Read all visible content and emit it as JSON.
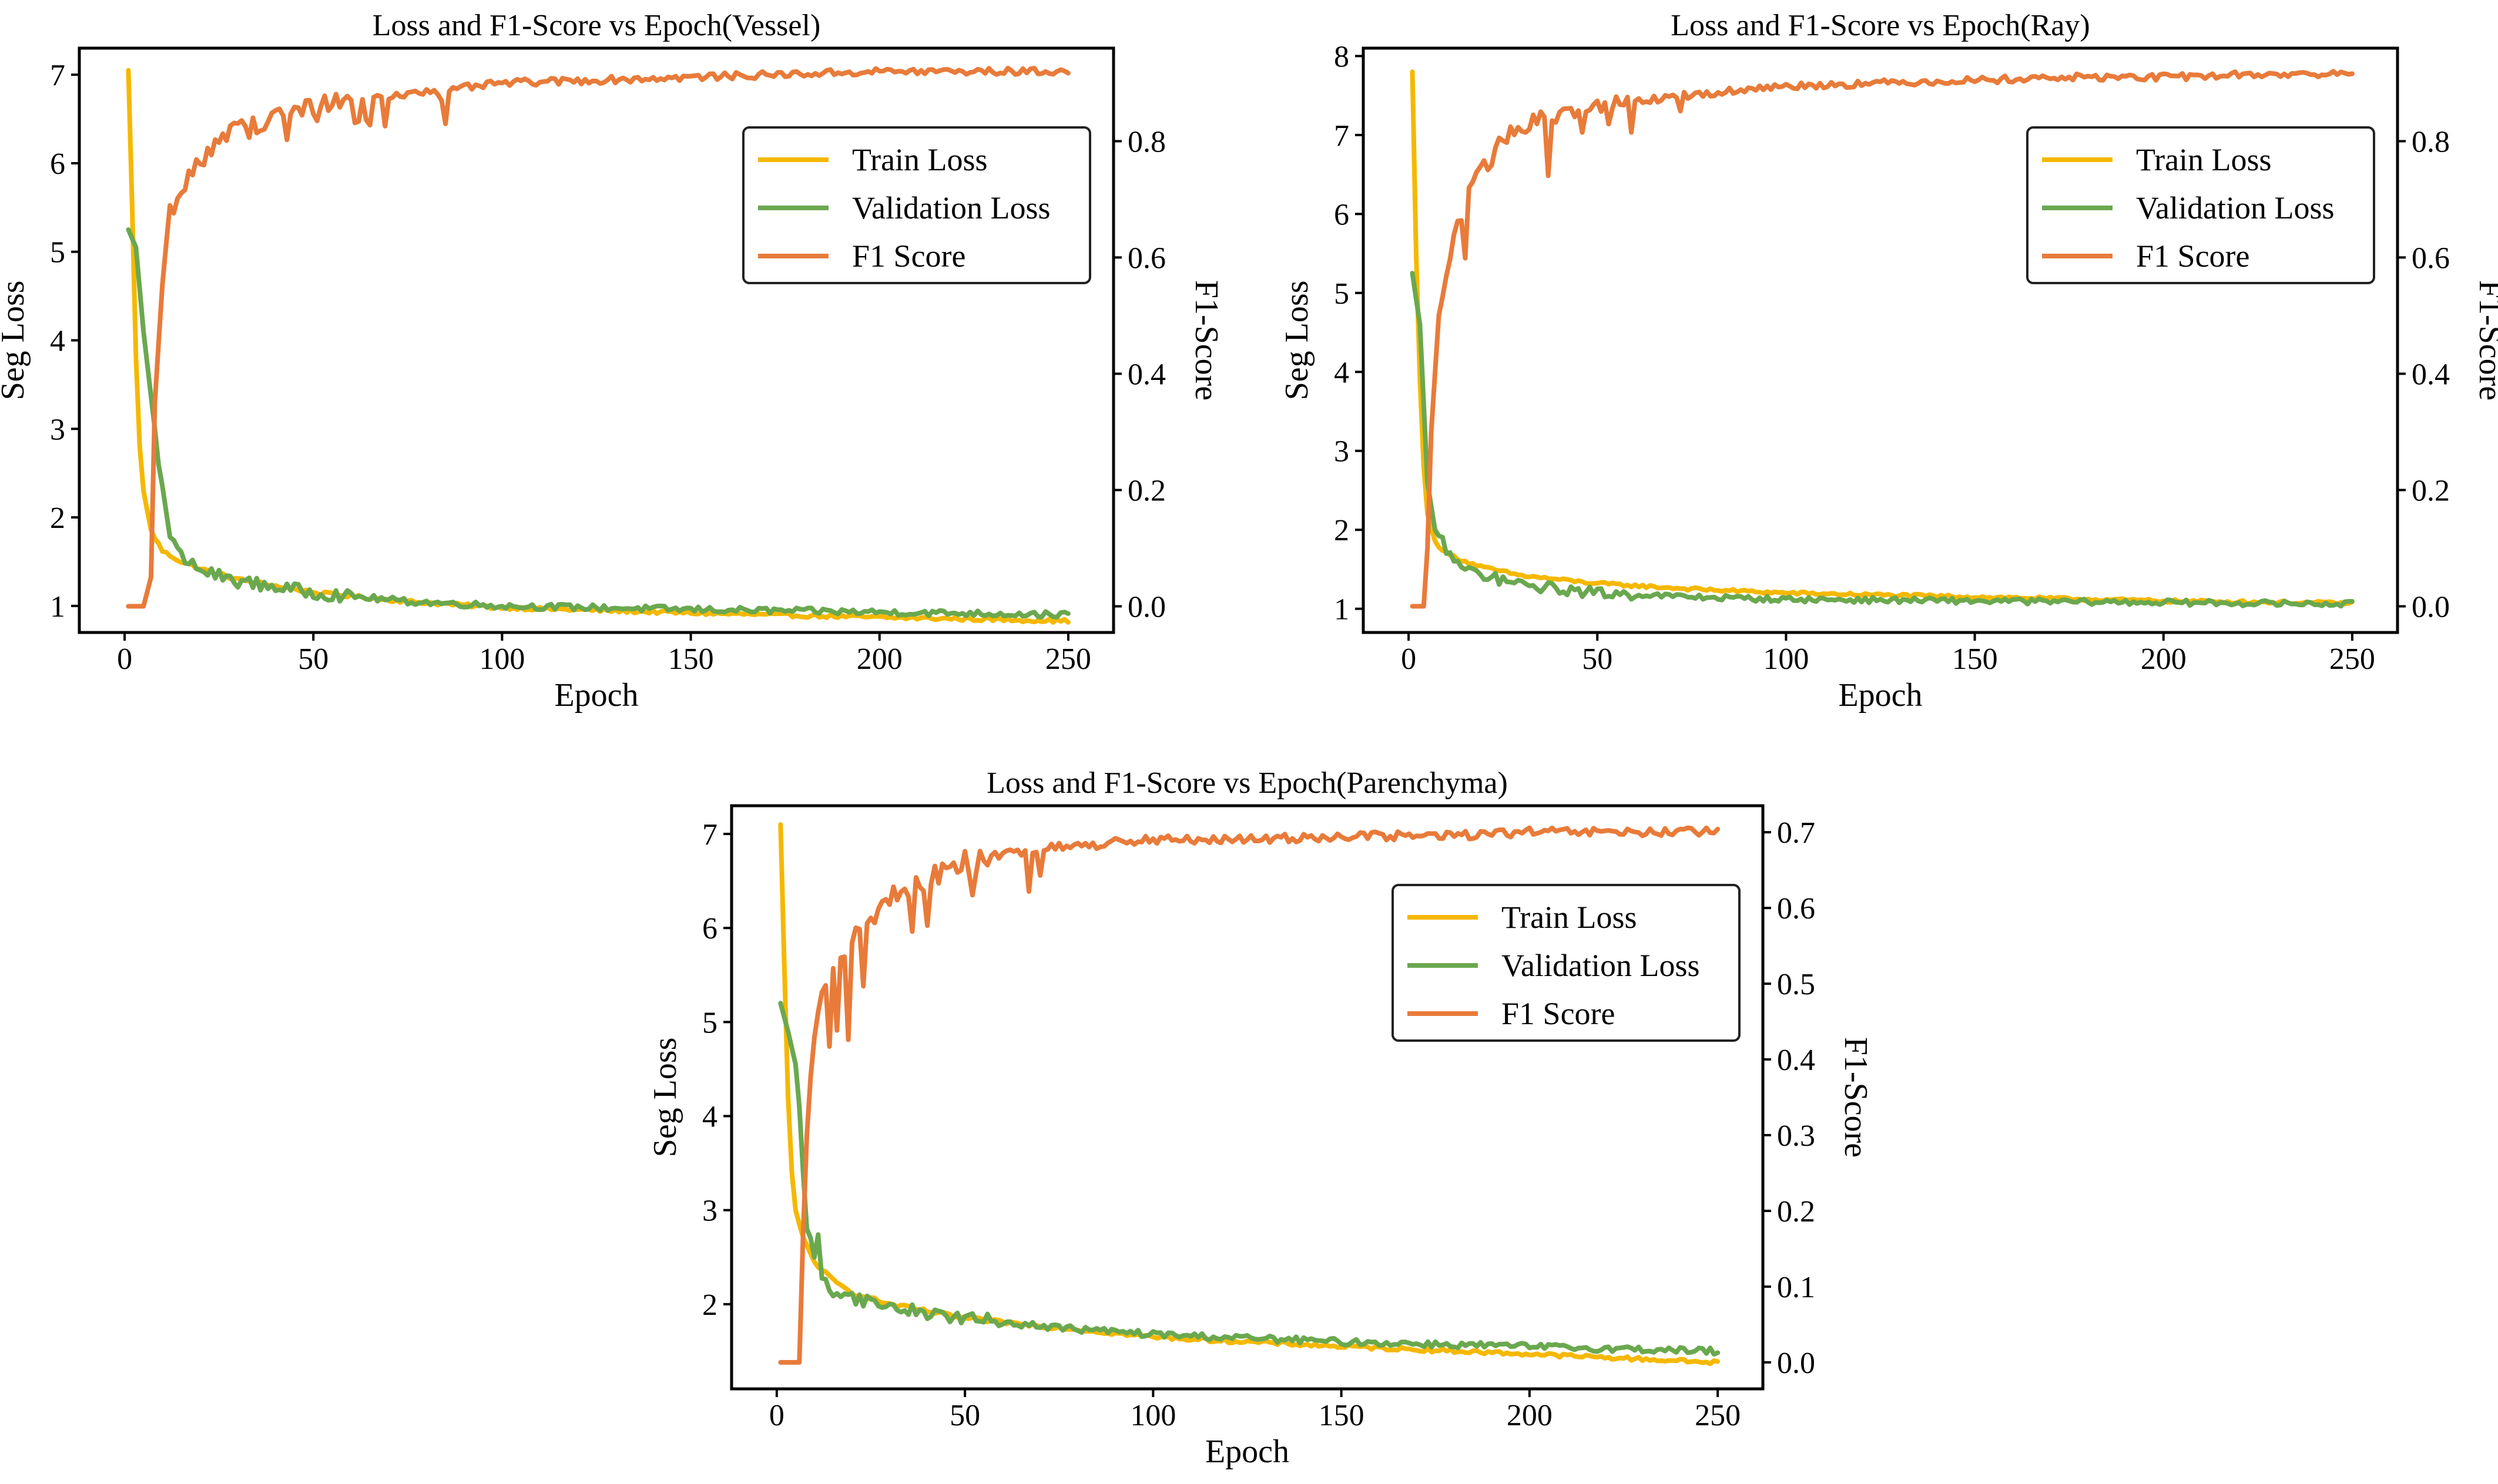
{
  "colors": {
    "train_loss": "#f5b800",
    "validation_loss": "#6aa84f",
    "f1_score": "#e87b3a",
    "axis": "#000000",
    "background": "#ffffff"
  },
  "chart_data": [
    {
      "type": "line",
      "title": "Loss and F1-Score vs Epoch(Vessel)",
      "xlabel": "Epoch",
      "ylabel": "Seg Loss",
      "y2label": "F1-Score",
      "xlim": [
        -12,
        262
      ],
      "ylim": [
        0.7,
        7.3
      ],
      "y2lim": [
        -0.045,
        0.96
      ],
      "xticks": [
        "0",
        "50",
        "100",
        "150",
        "200",
        "250"
      ],
      "yticks": [
        "1",
        "2",
        "3",
        "4",
        "5",
        "6",
        "7"
      ],
      "y2ticks": [
        "0.0",
        "0.2",
        "0.4",
        "0.6",
        "0.8"
      ],
      "legend": {
        "position": "upper-right",
        "entries": [
          "Train Loss",
          "Validation Loss",
          "F1 Score"
        ]
      },
      "series": [
        {
          "name": "Train Loss",
          "axis": "left",
          "color_key": "train_loss",
          "x": [
            1,
            2,
            3,
            4,
            5,
            7,
            10,
            15,
            20,
            30,
            50,
            75,
            100,
            150,
            200,
            250
          ],
          "y": [
            7.05,
            5.5,
            3.8,
            2.8,
            2.3,
            1.85,
            1.62,
            1.5,
            1.42,
            1.3,
            1.15,
            1.05,
            0.98,
            0.92,
            0.87,
            0.83
          ]
        },
        {
          "name": "Validation Loss",
          "axis": "left",
          "color_key": "validation_loss",
          "x": [
            1,
            3,
            5,
            8,
            10,
            12,
            15,
            20,
            30,
            50,
            75,
            100,
            150,
            200,
            250
          ],
          "y": [
            5.25,
            5.05,
            4.1,
            3.0,
            2.3,
            1.8,
            1.55,
            1.4,
            1.28,
            1.15,
            1.05,
            1.0,
            0.96,
            0.93,
            0.9
          ]
        },
        {
          "name": "F1 Score",
          "axis": "right",
          "color_key": "f1_score",
          "x": [
            1,
            5,
            7,
            8,
            10,
            12,
            15,
            20,
            25,
            30,
            40,
            50,
            60,
            75,
            100,
            125,
            150,
            175,
            200,
            225,
            250
          ],
          "y": [
            0.0,
            0.0,
            0.05,
            0.35,
            0.55,
            0.68,
            0.72,
            0.77,
            0.8,
            0.82,
            0.84,
            0.86,
            0.87,
            0.88,
            0.9,
            0.905,
            0.91,
            0.915,
            0.92,
            0.92,
            0.92
          ]
        }
      ]
    },
    {
      "type": "line",
      "title": "Loss and F1-Score vs Epoch(Ray)",
      "xlabel": "Epoch",
      "ylabel": "Seg Loss",
      "y2label": "F1-Score",
      "xlim": [
        -12,
        262
      ],
      "ylim": [
        0.7,
        8.1
      ],
      "y2lim": [
        -0.045,
        0.96
      ],
      "xticks": [
        "0",
        "50",
        "100",
        "150",
        "200",
        "250"
      ],
      "yticks": [
        "1",
        "2",
        "3",
        "4",
        "5",
        "6",
        "7",
        "8"
      ],
      "y2ticks": [
        "0.0",
        "0.2",
        "0.4",
        "0.6",
        "0.8"
      ],
      "legend": {
        "position": "upper-right",
        "entries": [
          "Train Loss",
          "Validation Loss",
          "F1 Score"
        ]
      },
      "series": [
        {
          "name": "Train Loss",
          "axis": "left",
          "color_key": "train_loss",
          "x": [
            1,
            2,
            3,
            4,
            5,
            7,
            10,
            15,
            20,
            30,
            50,
            75,
            100,
            150,
            200,
            250
          ],
          "y": [
            7.8,
            5.5,
            3.9,
            2.8,
            2.2,
            1.85,
            1.7,
            1.6,
            1.52,
            1.42,
            1.32,
            1.25,
            1.2,
            1.15,
            1.1,
            1.07
          ]
        },
        {
          "name": "Validation Loss",
          "axis": "left",
          "color_key": "validation_loss",
          "x": [
            1,
            3,
            5,
            7,
            9,
            12,
            15,
            20,
            30,
            50,
            75,
            100,
            150,
            200,
            250
          ],
          "y": [
            5.25,
            4.6,
            2.6,
            2.0,
            1.85,
            1.6,
            1.5,
            1.42,
            1.3,
            1.2,
            1.15,
            1.12,
            1.1,
            1.08,
            1.06
          ]
        },
        {
          "name": "F1 Score",
          "axis": "right",
          "color_key": "f1_score",
          "x": [
            1,
            4,
            5,
            6,
            8,
            10,
            12,
            15,
            18,
            20,
            25,
            30,
            40,
            50,
            75,
            100,
            125,
            150,
            175,
            200,
            225,
            250
          ],
          "y": [
            0.0,
            0.0,
            0.1,
            0.3,
            0.5,
            0.58,
            0.64,
            0.7,
            0.73,
            0.76,
            0.8,
            0.83,
            0.85,
            0.86,
            0.88,
            0.895,
            0.9,
            0.905,
            0.91,
            0.91,
            0.915,
            0.915
          ]
        }
      ]
    },
    {
      "type": "line",
      "title": "Loss and F1-Score vs Epoch(Parenchyma)",
      "xlabel": "Epoch",
      "ylabel": "Seg Loss",
      "y2label": "F1-Score",
      "xlim": [
        -12,
        262
      ],
      "ylim": [
        1.1,
        7.3
      ],
      "y2lim": [
        -0.035,
        0.735
      ],
      "xticks": [
        "0",
        "50",
        "100",
        "150",
        "200",
        "250"
      ],
      "yticks": [
        "2",
        "3",
        "4",
        "5",
        "6",
        "7"
      ],
      "y2ticks": [
        "0.0",
        "0.1",
        "0.2",
        "0.3",
        "0.4",
        "0.5",
        "0.6",
        "0.7"
      ],
      "legend": {
        "position": "upper-right",
        "entries": [
          "Train Loss",
          "Validation Loss",
          "F1 Score"
        ]
      },
      "series": [
        {
          "name": "Train Loss",
          "axis": "left",
          "color_key": "train_loss",
          "x": [
            1,
            2,
            3,
            4,
            5,
            7,
            10,
            15,
            20,
            30,
            50,
            75,
            100,
            150,
            200,
            250
          ],
          "y": [
            7.1,
            5.6,
            4.2,
            3.4,
            3.0,
            2.7,
            2.45,
            2.25,
            2.12,
            2.0,
            1.85,
            1.75,
            1.65,
            1.55,
            1.47,
            1.38
          ]
        },
        {
          "name": "Validation Loss",
          "axis": "left",
          "color_key": "validation_loss",
          "x": [
            1,
            3,
            5,
            6,
            7,
            8,
            10,
            11,
            12,
            15,
            20,
            30,
            50,
            75,
            100,
            150,
            200,
            250
          ],
          "y": [
            5.2,
            4.9,
            4.55,
            4.1,
            3.4,
            2.8,
            2.55,
            2.7,
            2.25,
            2.15,
            2.08,
            1.97,
            1.85,
            1.75,
            1.68,
            1.6,
            1.55,
            1.5
          ]
        },
        {
          "name": "F1 Score",
          "axis": "right",
          "color_key": "f1_score",
          "x": [
            1,
            6,
            7,
            8,
            10,
            12,
            15,
            20,
            25,
            30,
            40,
            50,
            60,
            75,
            100,
            125,
            150,
            175,
            200,
            225,
            250
          ],
          "y": [
            0.0,
            0.0,
            0.17,
            0.3,
            0.42,
            0.5,
            0.53,
            0.56,
            0.59,
            0.61,
            0.64,
            0.66,
            0.67,
            0.68,
            0.69,
            0.69,
            0.695,
            0.695,
            0.7,
            0.7,
            0.7
          ]
        }
      ]
    }
  ]
}
